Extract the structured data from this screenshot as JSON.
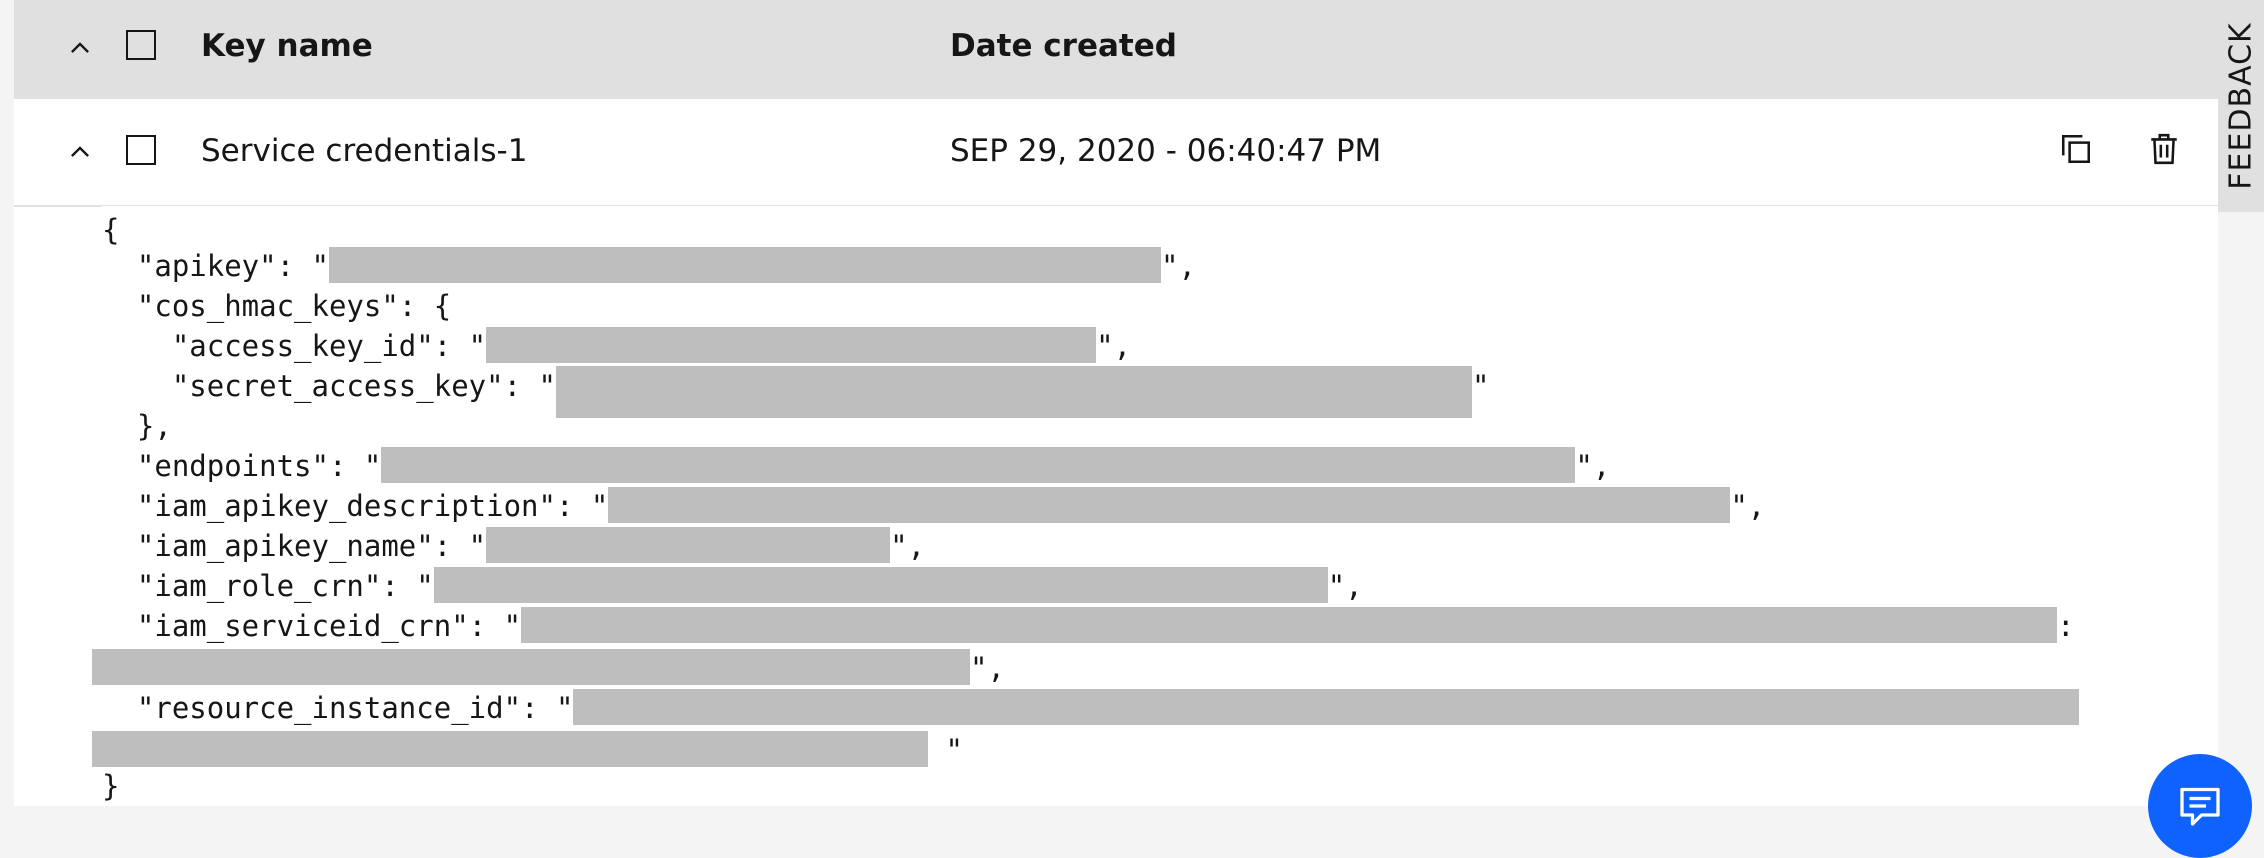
{
  "table": {
    "columns": {
      "key_name": "Key name",
      "date_created": "Date created"
    },
    "row": {
      "name": "Service credentials-1",
      "date": "SEP 29, 2020 - 06:40:47 PM"
    }
  },
  "credentials_json": {
    "open_brace": "{",
    "apikey_key": "  \"apikey\": \"",
    "apikey_end": "\",",
    "cos_hmac_key": "  \"cos_hmac_keys\": {",
    "access_key_id_key": "    \"access_key_id\": \"",
    "access_key_id_end": "\",",
    "secret_access_key_key": "    \"secret_access_key\": \"",
    "secret_access_key_end": "\"",
    "close_inner": "  },",
    "endpoints_key": "  \"endpoints\": \"",
    "endpoints_end": "\",",
    "iam_apikey_description_key": "  \"iam_apikey_description\": \"",
    "iam_apikey_description_end": "\",",
    "iam_apikey_name_key": "  \"iam_apikey_name\": \"",
    "iam_apikey_name_end": "\",",
    "iam_role_crn_key": "  \"iam_role_crn\": \"",
    "iam_role_crn_end": "\",",
    "iam_serviceid_crn_key": "  \"iam_serviceid_crn\": \"",
    "iam_serviceid_crn_tail": ":",
    "iam_serviceid_crn_end": "\",",
    "resource_instance_id_key": "  \"resource_instance_id\": \"",
    "resource_instance_id_end": " \"",
    "close_brace": "}"
  },
  "feedback_label": "FEEDBACK",
  "icons": {
    "expand": "chevron-up-icon",
    "copy": "copy-icon",
    "delete": "trash-icon",
    "chat": "chat-icon"
  },
  "colors": {
    "chat_button": "#0f62fe",
    "header_bg": "#e0e0e0",
    "redaction": "#bebebe"
  }
}
